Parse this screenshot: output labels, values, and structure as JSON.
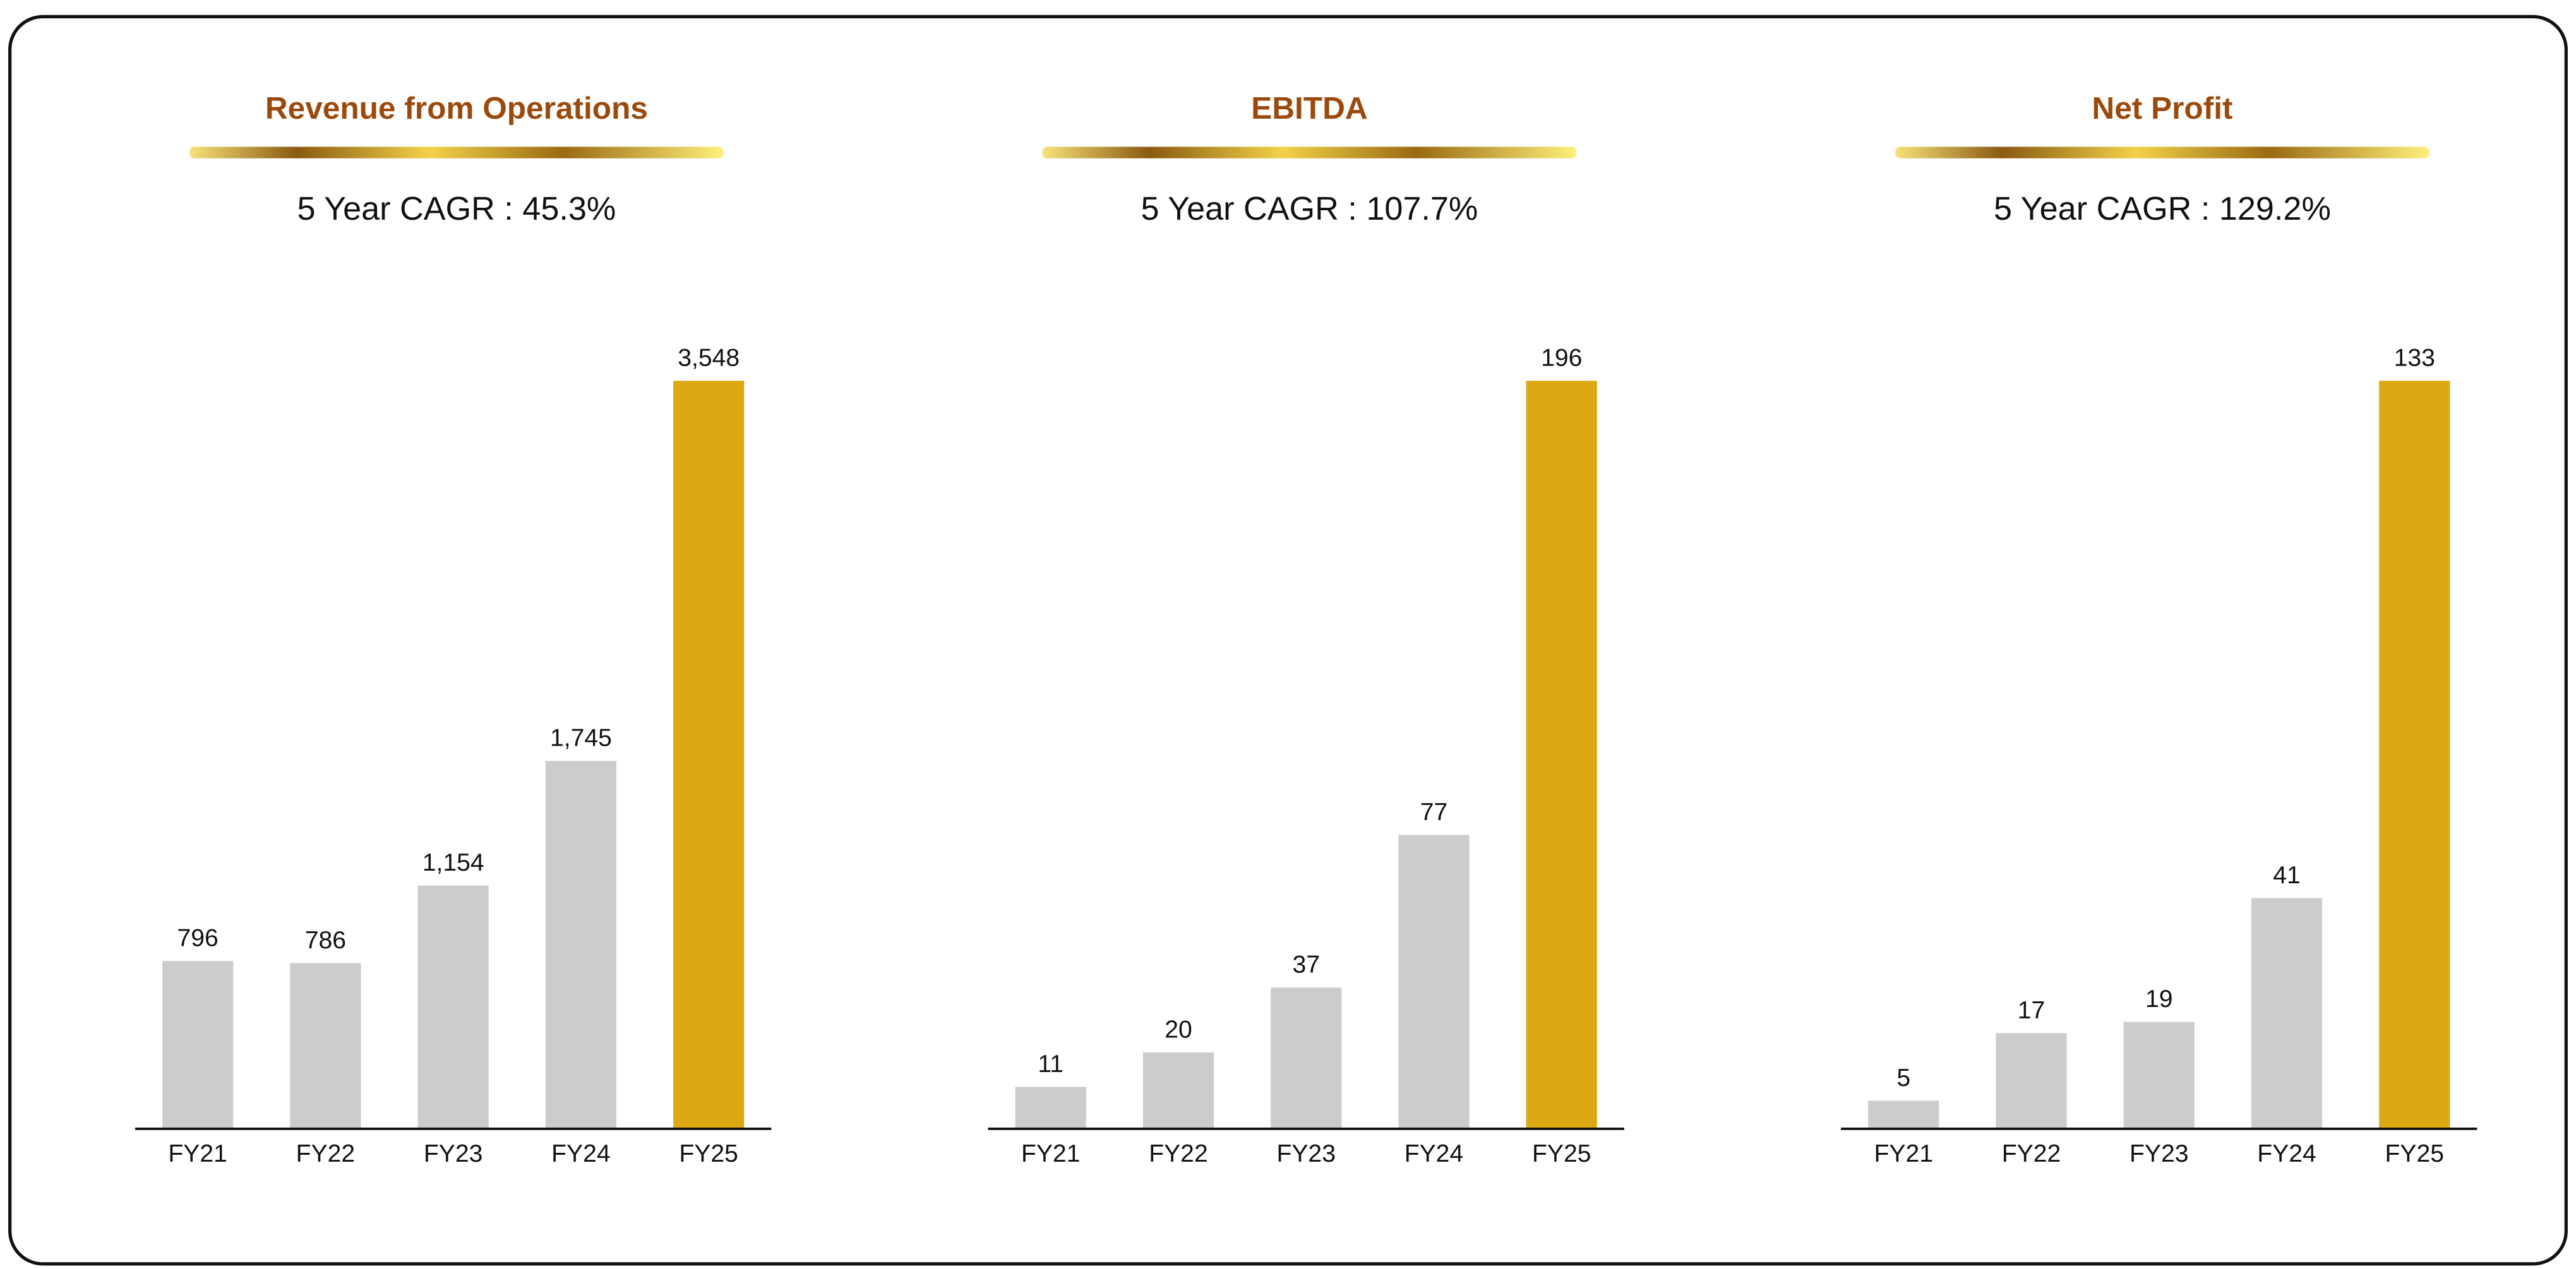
{
  "chart_data": [
    {
      "type": "bar",
      "title": "Revenue from Operations",
      "subtitle": "5 Year CAGR : 45.3%",
      "categories": [
        "FY21",
        "FY22",
        "FY23",
        "FY24",
        "FY25"
      ],
      "values": [
        796,
        786,
        1154,
        1745,
        3548
      ],
      "value_labels": [
        "796",
        "786",
        "1,154",
        "1,745",
        "3,548"
      ],
      "colors": [
        "#cccccc",
        "#cccccc",
        "#cccccc",
        "#cccccc",
        "#dca912"
      ]
    },
    {
      "type": "bar",
      "title": "EBITDA",
      "subtitle": "5 Year CAGR : 107.7%",
      "categories": [
        "FY21",
        "FY22",
        "FY23",
        "FY24",
        "FY25"
      ],
      "values": [
        11,
        20,
        37,
        77,
        196
      ],
      "colors": [
        "#cccccc",
        "#cccccc",
        "#cccccc",
        "#cccccc",
        "#dca912"
      ]
    },
    {
      "type": "bar",
      "title": "Net Profit",
      "subtitle": "5 Year CAGR : 129.2%",
      "categories": [
        "FY21",
        "FY22",
        "FY23",
        "FY24",
        "FY25"
      ],
      "values": [
        5,
        17,
        19,
        41,
        133
      ],
      "colors": [
        "#cccccc",
        "#cccccc",
        "#cccccc",
        "#cccccc",
        "#dca912"
      ]
    }
  ]
}
